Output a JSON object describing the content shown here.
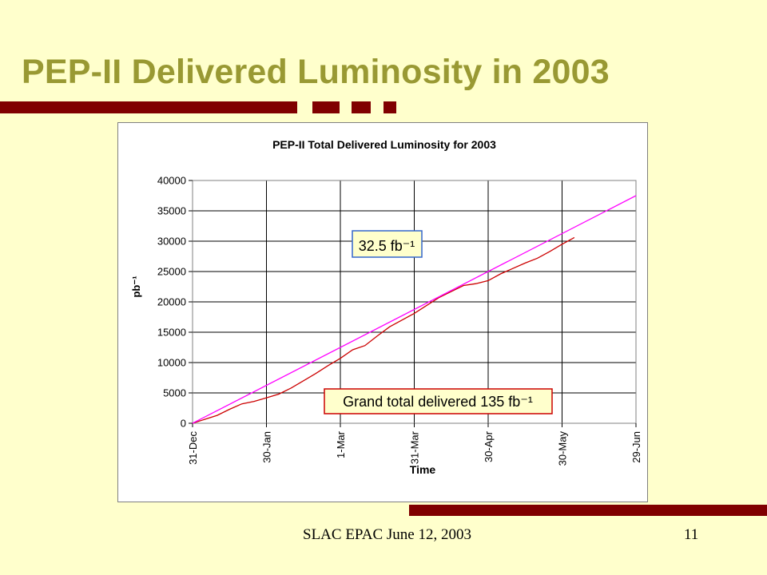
{
  "slide": {
    "title": "PEP-II Delivered Luminosity in 2003",
    "footer": "SLAC EPAC June 12, 2003",
    "page_number": "11"
  },
  "colors": {
    "background": "#ffffcc",
    "title": "#999933",
    "bars": "#800000",
    "delivered_series": "#cc0000",
    "trend_series": "#ff00ff",
    "callout_border_blue": "#3366cc",
    "callout_border_red": "#cc0000",
    "callout_fill": "#ffffcc"
  },
  "chart_data": {
    "type": "line",
    "title": "PEP-II Total Delivered Luminosity for 2003",
    "xlabel": "Time",
    "ylabel": "pb⁻¹",
    "ylim": [
      0,
      40000
    ],
    "yticks": [
      0,
      5000,
      10000,
      15000,
      20000,
      25000,
      30000,
      35000,
      40000
    ],
    "xlim": [
      "2002-12-31",
      "2003-06-29"
    ],
    "xtick_labels": [
      "31-Dec",
      "30-Jan",
      "1-Mar",
      "31-Mar",
      "30-Apr",
      "30-May",
      "29-Jun"
    ],
    "grid": true,
    "legend": "none",
    "annotations": [
      {
        "text": "32.5 fb⁻¹",
        "border": "blue"
      },
      {
        "text": "Grand total delivered 135 fb⁻¹",
        "border": "red"
      }
    ],
    "series": [
      {
        "line": "delivered",
        "color": "#cc0000",
        "x": [
          "2002-12-31",
          "2003-01-10",
          "2003-01-15",
          "2003-01-20",
          "2003-01-25",
          "2003-01-30",
          "2003-02-04",
          "2003-02-09",
          "2003-02-14",
          "2003-02-19",
          "2003-02-24",
          "2003-03-01",
          "2003-03-06",
          "2003-03-11",
          "2003-03-16",
          "2003-03-21",
          "2003-03-26",
          "2003-03-31",
          "2003-04-05",
          "2003-04-10",
          "2003-04-15",
          "2003-04-20",
          "2003-04-25",
          "2003-04-30",
          "2003-05-05",
          "2003-05-10",
          "2003-05-15",
          "2003-05-20",
          "2003-05-25",
          "2003-05-30",
          "2003-06-04"
        ],
        "y": [
          0,
          1300,
          2300,
          3200,
          3600,
          4200,
          4800,
          5800,
          7000,
          8200,
          9500,
          10700,
          12100,
          12800,
          14400,
          15900,
          17000,
          18100,
          19400,
          20700,
          21700,
          22700,
          23000,
          23500,
          24600,
          25500,
          26400,
          27200,
          28300,
          29500,
          30600
        ]
      },
      {
        "line": "trend",
        "color": "#ff00ff",
        "x": [
          "2002-12-31",
          "2003-06-29"
        ],
        "y": [
          0,
          37500
        ]
      }
    ]
  }
}
